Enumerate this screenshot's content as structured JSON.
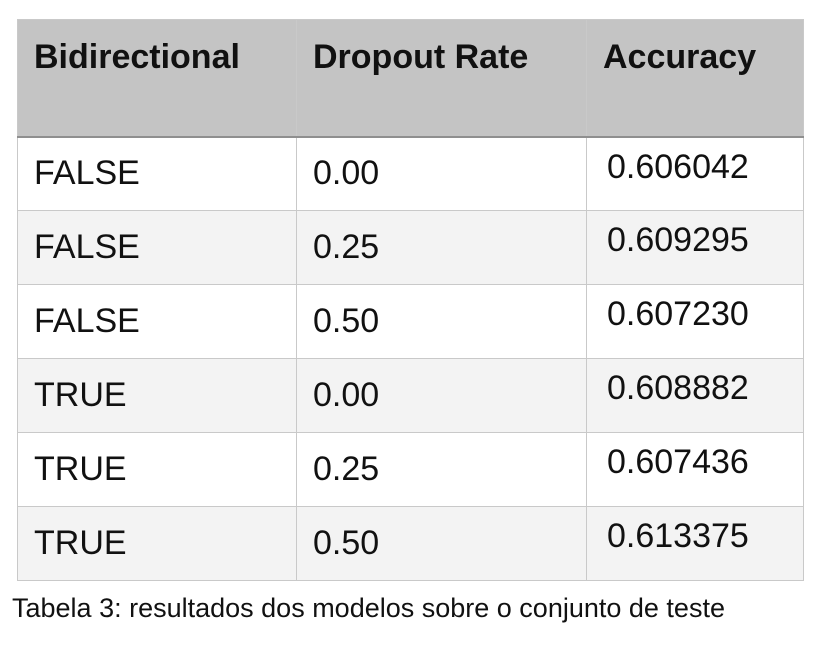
{
  "table": {
    "headers": [
      "Bidirectional",
      "Dropout Rate",
      "Accuracy"
    ],
    "rows": [
      [
        "FALSE",
        "0.00",
        "0.606042"
      ],
      [
        "FALSE",
        "0.25",
        "0.609295"
      ],
      [
        "FALSE",
        "0.50",
        "0.607230"
      ],
      [
        "TRUE",
        "0.00",
        "0.608882"
      ],
      [
        "TRUE",
        "0.25",
        "0.607436"
      ],
      [
        "TRUE",
        "0.50",
        "0.613375"
      ]
    ]
  },
  "caption": "Tabela 3: resultados dos modelos sobre o conjunto de teste",
  "colors": {
    "header_background": "#c4c4c4",
    "row_alt_background": "#f3f3f3",
    "grid_line": "#c9c9c9"
  }
}
